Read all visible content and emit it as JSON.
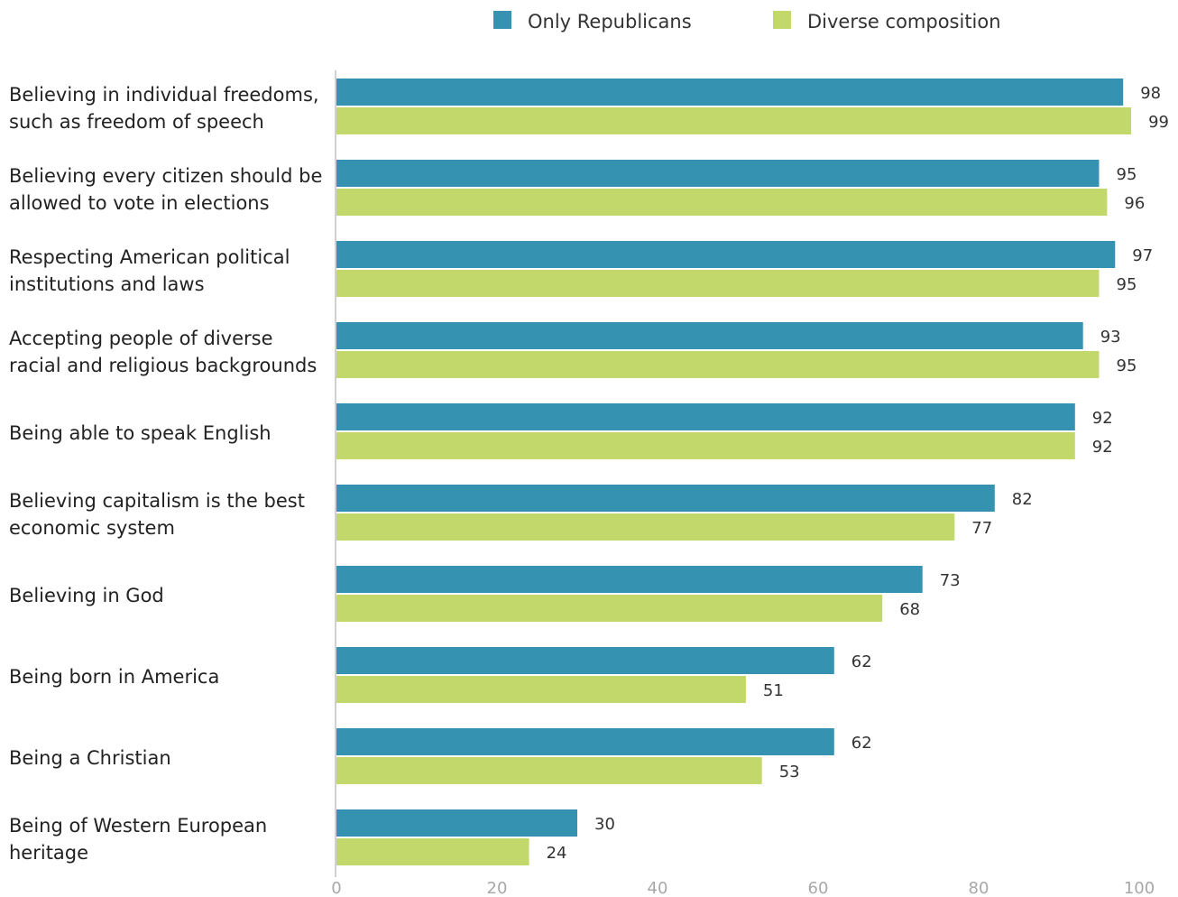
{
  "chart_data": {
    "type": "bar",
    "orientation": "horizontal",
    "categories": [
      [
        "Believing in individual freedoms,",
        "such as freedom of speech"
      ],
      [
        "Believing every citizen should be",
        "allowed to vote in elections"
      ],
      [
        "Respecting American political",
        "institutions and laws"
      ],
      [
        "Accepting people of diverse",
        "racial and religious backgrounds"
      ],
      [
        "Being able to speak English"
      ],
      [
        "Believing capitalism is the best",
        "economic system"
      ],
      [
        "Believing in God"
      ],
      [
        "Being born in America"
      ],
      [
        "Being a Christian"
      ],
      [
        "Being of Western European",
        "heritage"
      ]
    ],
    "series": [
      {
        "name": "Only Republicans",
        "color": "#3592b0",
        "values": [
          98,
          95,
          97,
          93,
          92,
          82,
          73,
          62,
          62,
          30
        ]
      },
      {
        "name": "Diverse composition",
        "color": "#c3d86a",
        "values": [
          99,
          96,
          95,
          95,
          92,
          77,
          68,
          51,
          53,
          24
        ]
      }
    ],
    "xlim": [
      0,
      100
    ],
    "xticks": [
      0,
      20,
      40,
      60,
      80,
      100
    ],
    "grid": false,
    "legend": "top-center",
    "colors": {
      "axis": "#d0d0d0",
      "tick": "#a8a8a8"
    }
  }
}
